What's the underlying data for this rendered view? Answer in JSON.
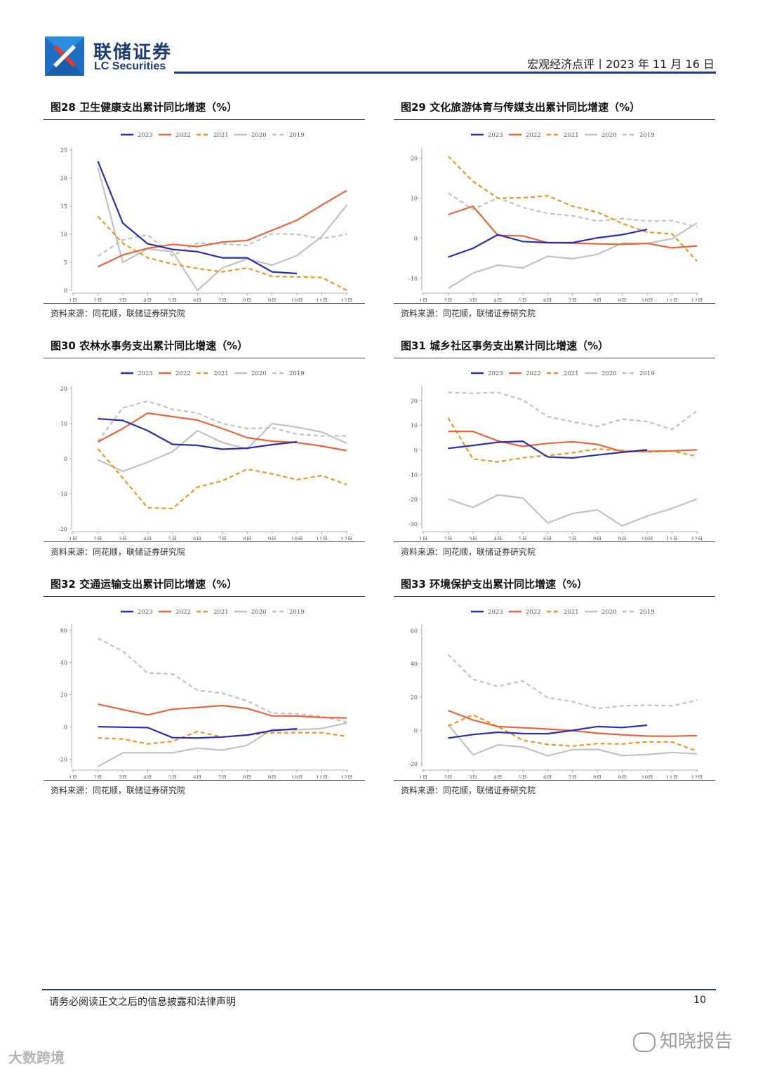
{
  "header": {
    "company_cn": "联储证券",
    "company_en": "LC Securities",
    "report_info": "宏观经济点评丨2023 年 11 月 16 日"
  },
  "legend_names": [
    "2023",
    "2022",
    "2021",
    "2020",
    "2019"
  ],
  "series_colors": [
    "#2a2fb0",
    "#e8663a",
    "#f0961e",
    "#c3c3c3",
    "#c3c3c3"
  ],
  "source_text": "资料来源：同花顺，联储证券研究院",
  "charts": [
    {
      "title": "图28 卫生健康支出累计同比增速（%）",
      "chart_data": {
        "type": "line",
        "categories": [
          "1月",
          "2月",
          "3月",
          "4月",
          "5月",
          "6月",
          "7月",
          "8月",
          "9月",
          "10月",
          "11月",
          "12月"
        ],
        "ylim": [
          0,
          25
        ],
        "yticks": [
          0,
          5,
          10,
          15,
          20,
          25
        ],
        "series": [
          {
            "name": "2023",
            "values": [
              null,
              23,
              12,
              8.3,
              7.3,
              6.9,
              5.8,
              5.8,
              3.3,
              3.0,
              null,
              null
            ]
          },
          {
            "name": "2022",
            "values": [
              null,
              4.2,
              6.3,
              7.5,
              8.2,
              7.8,
              8.6,
              8.9,
              10.7,
              12.5,
              15.2,
              17.8
            ]
          },
          {
            "name": "2021",
            "values": [
              null,
              13.2,
              8.4,
              5.8,
              4.7,
              3.9,
              3.3,
              4.0,
              2.5,
              2.4,
              2.3,
              0.0
            ]
          },
          {
            "name": "2020",
            "values": [
              null,
              21.9,
              5.0,
              7.4,
              6.9,
              0.0,
              4.0,
              5.6,
              4.5,
              6.2,
              9.6,
              15.2
            ]
          },
          {
            "name": "2019",
            "values": [
              null,
              6.1,
              9.0,
              9.9,
              6.2,
              8.4,
              8.3,
              8.0,
              10.1,
              10.0,
              9.2,
              10.0
            ]
          }
        ]
      }
    },
    {
      "title": "图29 文化旅游体育与传媒支出累计同比增速（%）",
      "chart_data": {
        "type": "line",
        "categories": [
          "1月",
          "2月",
          "3月",
          "4月",
          "5月",
          "6月",
          "7月",
          "8月",
          "9月",
          "10月",
          "11月",
          "12月"
        ],
        "ylim": [
          -13,
          22
        ],
        "yticks": [
          -10,
          0,
          10,
          20
        ],
        "series": [
          {
            "name": "2023",
            "values": [
              null,
              -4.7,
              -2.5,
              0.9,
              -0.8,
              -1.1,
              -1.1,
              0.1,
              0.9,
              2.2,
              null,
              null
            ]
          },
          {
            "name": "2022",
            "values": [
              null,
              5.9,
              8.0,
              0.7,
              0.6,
              -1.1,
              -1.2,
              -1.4,
              -1.5,
              -1.3,
              -2.4,
              -1.9
            ]
          },
          {
            "name": "2021",
            "values": [
              null,
              20.5,
              14.2,
              10.0,
              10.1,
              10.6,
              8.0,
              6.5,
              3.7,
              1.5,
              1.1,
              -5.7
            ]
          },
          {
            "name": "2020",
            "values": [
              null,
              -12.5,
              -8.7,
              -6.7,
              -7.4,
              -4.5,
              -5.1,
              -4.0,
              -1.2,
              -1.3,
              -0.1,
              3.8
            ]
          },
          {
            "name": "2019",
            "values": [
              null,
              11.3,
              7.2,
              10.1,
              7.7,
              6.2,
              5.6,
              4.3,
              4.9,
              4.3,
              4.4,
              2.8
            ]
          }
        ]
      }
    },
    {
      "title": "图30 农林水事务支出累计同比增速（%）",
      "chart_data": {
        "type": "line",
        "categories": [
          "1月",
          "2月",
          "3月",
          "4月",
          "5月",
          "6月",
          "7月",
          "8月",
          "9月",
          "10月",
          "11月",
          "12月"
        ],
        "ylim": [
          -20,
          20
        ],
        "yticks": [
          -20,
          -10,
          0,
          10,
          20
        ],
        "series": [
          {
            "name": "2023",
            "values": [
              null,
              11.4,
              10.9,
              8.0,
              4.1,
              3.8,
              2.7,
              3.0,
              4.0,
              4.8,
              null,
              null
            ]
          },
          {
            "name": "2022",
            "values": [
              null,
              4.8,
              8.6,
              13.0,
              12.0,
              11.0,
              8.6,
              6.0,
              5.0,
              4.6,
              3.6,
              2.3
            ]
          },
          {
            "name": "2021",
            "values": [
              null,
              2.8,
              -5.5,
              -14.0,
              -14.2,
              -8.1,
              -6.3,
              -3.0,
              -4.3,
              -6.0,
              -4.8,
              -7.4
            ]
          },
          {
            "name": "2020",
            "values": [
              null,
              -0.3,
              -3.6,
              -1.0,
              2.0,
              8.0,
              4.6,
              2.8,
              10.0,
              9.0,
              7.6,
              4.4
            ]
          },
          {
            "name": "2019",
            "values": [
              null,
              4.9,
              14.5,
              16.4,
              14.1,
              13.0,
              10.0,
              8.6,
              8.8,
              7.0,
              6.5,
              6.5
            ]
          }
        ]
      }
    },
    {
      "title": "图31 城乡社区事务支出累计同比增速（%）",
      "chart_data": {
        "type": "line",
        "categories": [
          "1月",
          "2月",
          "3月",
          "4月",
          "5月",
          "6月",
          "7月",
          "8月",
          "9月",
          "10月",
          "11月",
          "12月"
        ],
        "ylim": [
          -32,
          25
        ],
        "yticks": [
          -30,
          -20,
          -10,
          0,
          10,
          20
        ],
        "series": [
          {
            "name": "2023",
            "values": [
              null,
              0.7,
              1.9,
              3.2,
              3.6,
              -2.8,
              -3.2,
              -2.0,
              -0.9,
              0.1,
              null,
              null
            ]
          },
          {
            "name": "2022",
            "values": [
              null,
              7.6,
              7.6,
              3.7,
              1.5,
              2.7,
              3.4,
              2.3,
              -0.6,
              -0.5,
              -0.3,
              0.1
            ]
          },
          {
            "name": "2021",
            "values": [
              null,
              13.1,
              -3.6,
              -4.8,
              -3.1,
              -2.2,
              -1.1,
              0.5,
              -0.2,
              -0.7,
              -0.4,
              -2.5
            ]
          },
          {
            "name": "2020",
            "values": [
              null,
              -19.9,
              -23.3,
              -18.2,
              -19.5,
              -29.6,
              -25.8,
              -24.3,
              -30.8,
              -26.8,
              -23.7,
              -19.9
            ]
          },
          {
            "name": "2019",
            "values": [
              null,
              23.4,
              23.1,
              23.4,
              20.4,
              13.6,
              11.5,
              9.6,
              12.6,
              11.6,
              8.4,
              15.9
            ]
          }
        ]
      }
    },
    {
      "title": "图32 交通运输支出累计同比增速（%）",
      "chart_data": {
        "type": "line",
        "categories": [
          "1月",
          "2月",
          "3月",
          "4月",
          "5月",
          "6月",
          "7月",
          "8月",
          "9月",
          "10月",
          "11月",
          "12月"
        ],
        "ylim": [
          -25,
          62
        ],
        "yticks": [
          -20,
          0,
          20,
          40,
          60
        ],
        "series": [
          {
            "name": "2023",
            "values": [
              null,
              0.2,
              -0.1,
              -0.4,
              -6.6,
              -6.8,
              -6.2,
              -5.0,
              -2.2,
              -1.1,
              null,
              null
            ]
          },
          {
            "name": "2022",
            "values": [
              null,
              14.2,
              10.8,
              7.5,
              11.0,
              12.1,
              13.3,
              11.5,
              6.9,
              6.8,
              5.9,
              5.6
            ]
          },
          {
            "name": "2021",
            "values": [
              null,
              -6.8,
              -7.4,
              -10.5,
              -8.9,
              -2.8,
              -6.2,
              -5.0,
              -3.6,
              -3.5,
              -3.5,
              -5.8
            ]
          },
          {
            "name": "2020",
            "values": [
              null,
              -24.5,
              -16.0,
              -16.0,
              -16.0,
              -13.1,
              -14.4,
              -11.4,
              -1.5,
              -1.8,
              -0.9,
              2.5
            ]
          },
          {
            "name": "2019",
            "values": [
              null,
              55.0,
              47.1,
              33.4,
              32.9,
              22.7,
              21.0,
              16.2,
              8.6,
              8.2,
              6.6,
              3.1
            ]
          }
        ]
      }
    },
    {
      "title": "图33 环境保护支出累计同比增速（%）",
      "chart_data": {
        "type": "line",
        "categories": [
          "1月",
          "2月",
          "3月",
          "4月",
          "5月",
          "6月",
          "7月",
          "8月",
          "9月",
          "10月",
          "11月",
          "12月"
        ],
        "ylim": [
          -22,
          62
        ],
        "yticks": [
          -20,
          0,
          20,
          40,
          60
        ],
        "series": [
          {
            "name": "2023",
            "values": [
              null,
              -4.5,
              -2.4,
              -1.0,
              -1.8,
              -1.9,
              0.1,
              2.4,
              1.8,
              3.2,
              null,
              null
            ]
          },
          {
            "name": "2022",
            "values": [
              null,
              12.0,
              6.3,
              2.4,
              1.7,
              0.9,
              0.0,
              -1.6,
              -2.5,
              -3.3,
              -3.4,
              -3.0
            ]
          },
          {
            "name": "2021",
            "values": [
              null,
              2.8,
              9.4,
              2.4,
              -5.8,
              -8.3,
              -9.3,
              -7.8,
              -8.0,
              -6.8,
              -6.8,
              -12.3
            ]
          },
          {
            "name": "2020",
            "values": [
              null,
              3.6,
              -14.5,
              -8.6,
              -9.8,
              -15.1,
              -11.4,
              -11.3,
              -15.0,
              -14.4,
              -13.1,
              -13.9
            ]
          },
          {
            "name": "2019",
            "values": [
              null,
              45.5,
              30.7,
              26.5,
              29.7,
              19.7,
              17.3,
              13.2,
              14.8,
              15.2,
              14.8,
              18.2
            ]
          }
        ]
      }
    }
  ],
  "footer": {
    "disclaimer": "请务必阅读正文之后的信息披露和法律声明",
    "page_number": "10"
  },
  "watermarks": {
    "right": "知晓报告",
    "left": "大数跨境"
  }
}
